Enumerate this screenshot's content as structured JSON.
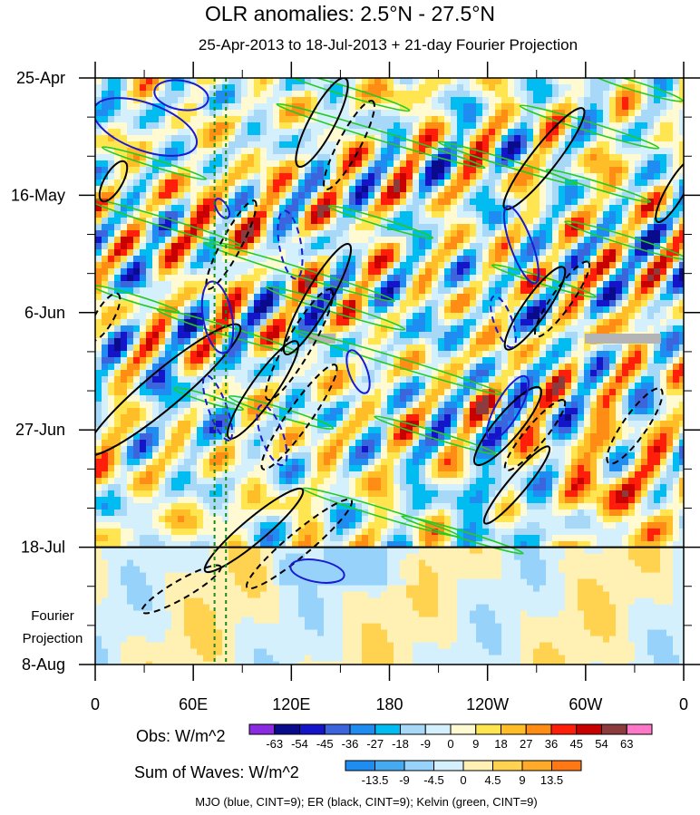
{
  "title": "OLR anomalies: 2.5°N - 27.5°N",
  "subtitle": "25-Apr-2013 to 18-Jul-2013 + 21-day Fourier Projection",
  "colors": {
    "mjo": "#1a1ad0",
    "er": "#000000",
    "kelvin": "#22cc22",
    "separator": "#000000",
    "marker_line": "#1a8a1a"
  },
  "chart_data": {
    "type": "heatmap",
    "title": "OLR anomalies: 2.5°N - 27.5°N",
    "subtitle": "25-Apr-2013 to 18-Jul-2013 + 21-day Fourier Projection",
    "x_ticks": [
      "0",
      "60E",
      "120E",
      "180",
      "120W",
      "60W",
      "0"
    ],
    "x_tick_values": [
      0,
      60,
      120,
      180,
      240,
      300,
      360
    ],
    "xlim": [
      0,
      360
    ],
    "y_ticks": [
      "25-Apr",
      "16-May",
      "6-Jun",
      "27-Jun",
      "18-Jul",
      "8-Aug"
    ],
    "y_tick_days": [
      0,
      21,
      42,
      63,
      84,
      105
    ],
    "ylim_days": [
      0,
      105
    ],
    "observed_end_day": 84,
    "projection_label": "Fourier Projection",
    "obs_colorbar": {
      "label": "Obs: W/m^2",
      "levels": [
        "-63",
        "-54",
        "-45",
        "-36",
        "-27",
        "-18",
        "-9",
        "0",
        "9",
        "18",
        "27",
        "36",
        "45",
        "54",
        "63"
      ],
      "colors": [
        "#8a2be2",
        "#0a0a8c",
        "#1414c8",
        "#3c64dc",
        "#1e8cf0",
        "#00bcf0",
        "#a8d8f8",
        "#d4f0fc",
        "#fffad2",
        "#ffe650",
        "#ffbe28",
        "#ff8c14",
        "#ff1e0a",
        "#c80000",
        "#8c3c3c",
        "#ff78c8"
      ]
    },
    "wave_colorbar": {
      "label": "Sum of Waves: W/m^2",
      "levels": [
        "-13.5",
        "-9",
        "-4.5",
        "0",
        "4.5",
        "9",
        "13.5"
      ],
      "colors": [
        "#1e8cf0",
        "#46aaf0",
        "#96d2fa",
        "#d4f0fc",
        "#fff0b4",
        "#ffd250",
        "#ffaa28",
        "#ff7814"
      ]
    },
    "wave_legend": "MJO (blue, CINT=9); ER (black, CINT=9); Kelvin (green, CINT=9)",
    "marker_longitudes": [
      73,
      80
    ]
  }
}
